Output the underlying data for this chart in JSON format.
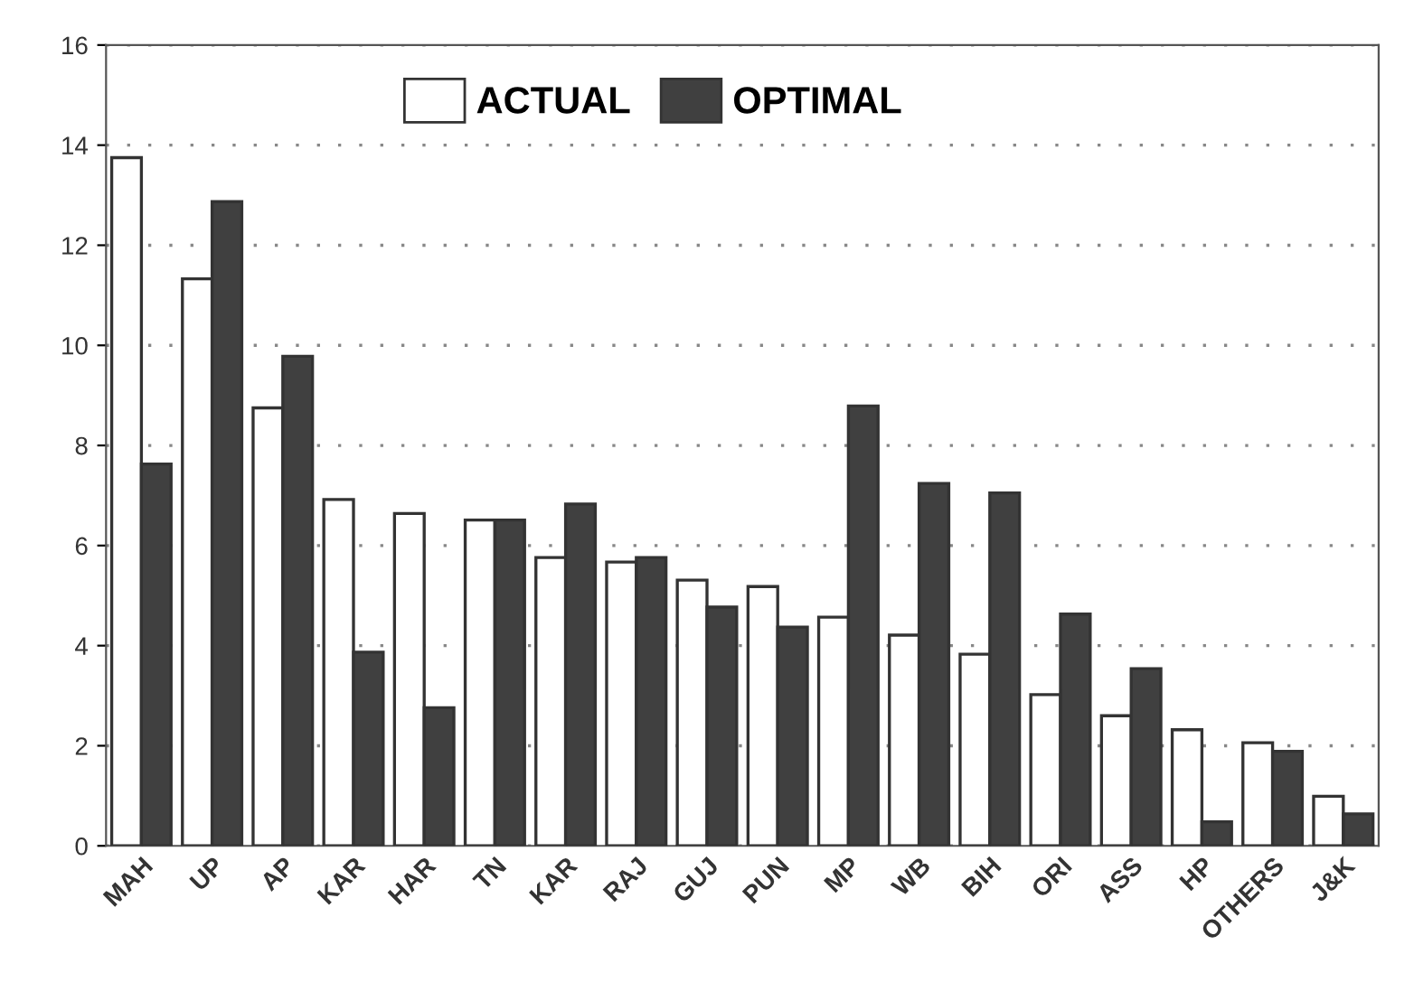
{
  "chart_data": {
    "type": "bar",
    "categories": [
      "MAH",
      "UP",
      "AP",
      "KAR",
      "HAR",
      "TN",
      "KAR",
      "RAJ",
      "GUJ",
      "PUN",
      "MP",
      "WB",
      "BIH",
      "ORI",
      "ASS",
      "HP",
      "OTHERS",
      "J&K"
    ],
    "series": [
      {
        "name": "ACTUAL",
        "color": "#ffffff",
        "values": [
          13.75,
          11.33,
          8.75,
          6.92,
          6.64,
          6.51,
          5.76,
          5.67,
          5.31,
          5.18,
          4.57,
          4.21,
          3.83,
          3.02,
          2.6,
          2.32,
          2.06,
          0.99
        ]
      },
      {
        "name": "OPTIMAL",
        "color": "#404040",
        "values": [
          7.63,
          12.87,
          9.78,
          3.87,
          2.76,
          6.51,
          6.83,
          5.76,
          4.77,
          4.37,
          8.79,
          7.24,
          7.05,
          4.63,
          3.54,
          0.48,
          1.89,
          0.64
        ]
      }
    ],
    "ylim": [
      0,
      16
    ],
    "yticks": [
      0,
      2,
      4,
      6,
      8,
      10,
      12,
      14,
      16
    ],
    "grid": "y",
    "legend": "top"
  }
}
